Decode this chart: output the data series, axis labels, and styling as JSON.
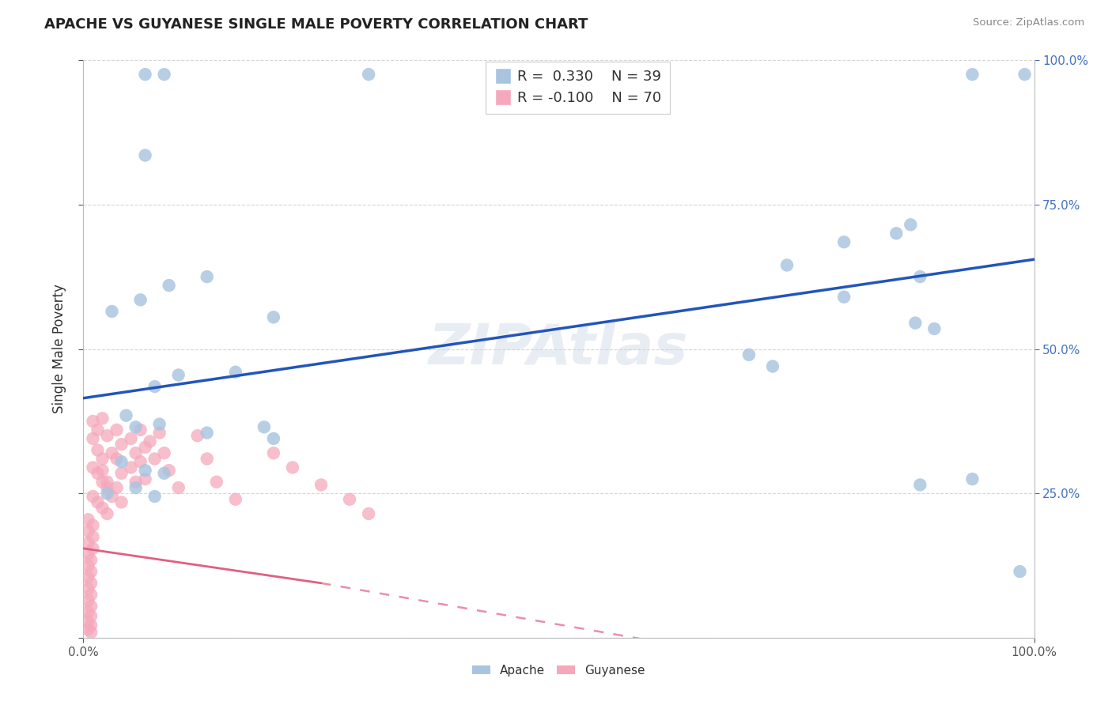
{
  "title": "APACHE VS GUYANESE SINGLE MALE POVERTY CORRELATION CHART",
  "source": "Source: ZipAtlas.com",
  "ylabel": "Single Male Poverty",
  "watermark": "ZIPAtlas",
  "legend_apache": "Apache",
  "legend_guyanese": "Guyanese",
  "apache_r": 0.33,
  "apache_n": 39,
  "guyanese_r": -0.1,
  "guyanese_n": 70,
  "xlim": [
    0.0,
    1.0
  ],
  "ylim": [
    0.0,
    1.0
  ],
  "apache_color": "#a8c4e0",
  "apache_line_color": "#2255bb",
  "guyanese_color": "#f5a8bc",
  "guyanese_line_color": "#e06080",
  "background_color": "#ffffff",
  "apache_scatter": [
    [
      0.065,
      0.975
    ],
    [
      0.085,
      0.975
    ],
    [
      0.3,
      0.975
    ],
    [
      0.935,
      0.975
    ],
    [
      0.99,
      0.975
    ],
    [
      0.065,
      0.835
    ],
    [
      0.03,
      0.565
    ],
    [
      0.06,
      0.585
    ],
    [
      0.09,
      0.61
    ],
    [
      0.13,
      0.625
    ],
    [
      0.2,
      0.555
    ],
    [
      0.1,
      0.455
    ],
    [
      0.16,
      0.46
    ],
    [
      0.075,
      0.435
    ],
    [
      0.045,
      0.385
    ],
    [
      0.055,
      0.365
    ],
    [
      0.08,
      0.37
    ],
    [
      0.13,
      0.355
    ],
    [
      0.19,
      0.365
    ],
    [
      0.2,
      0.345
    ],
    [
      0.04,
      0.305
    ],
    [
      0.065,
      0.29
    ],
    [
      0.085,
      0.285
    ],
    [
      0.025,
      0.25
    ],
    [
      0.055,
      0.26
    ],
    [
      0.075,
      0.245
    ],
    [
      0.74,
      0.645
    ],
    [
      0.8,
      0.685
    ],
    [
      0.8,
      0.59
    ],
    [
      0.855,
      0.7
    ],
    [
      0.87,
      0.715
    ],
    [
      0.875,
      0.545
    ],
    [
      0.88,
      0.625
    ],
    [
      0.895,
      0.535
    ],
    [
      0.7,
      0.49
    ],
    [
      0.725,
      0.47
    ],
    [
      0.88,
      0.265
    ],
    [
      0.935,
      0.275
    ],
    [
      0.985,
      0.115
    ]
  ],
  "guyanese_scatter": [
    [
      0.01,
      0.375
    ],
    [
      0.015,
      0.36
    ],
    [
      0.01,
      0.345
    ],
    [
      0.015,
      0.325
    ],
    [
      0.02,
      0.31
    ],
    [
      0.01,
      0.295
    ],
    [
      0.015,
      0.285
    ],
    [
      0.02,
      0.27
    ],
    [
      0.025,
      0.26
    ],
    [
      0.01,
      0.245
    ],
    [
      0.015,
      0.235
    ],
    [
      0.02,
      0.225
    ],
    [
      0.025,
      0.215
    ],
    [
      0.005,
      0.205
    ],
    [
      0.01,
      0.195
    ],
    [
      0.005,
      0.185
    ],
    [
      0.01,
      0.175
    ],
    [
      0.005,
      0.165
    ],
    [
      0.01,
      0.155
    ],
    [
      0.005,
      0.145
    ],
    [
      0.008,
      0.135
    ],
    [
      0.005,
      0.125
    ],
    [
      0.008,
      0.115
    ],
    [
      0.005,
      0.105
    ],
    [
      0.008,
      0.095
    ],
    [
      0.005,
      0.085
    ],
    [
      0.008,
      0.075
    ],
    [
      0.005,
      0.065
    ],
    [
      0.008,
      0.055
    ],
    [
      0.005,
      0.045
    ],
    [
      0.008,
      0.038
    ],
    [
      0.005,
      0.028
    ],
    [
      0.008,
      0.022
    ],
    [
      0.005,
      0.015
    ],
    [
      0.008,
      0.01
    ],
    [
      0.02,
      0.38
    ],
    [
      0.025,
      0.35
    ],
    [
      0.03,
      0.32
    ],
    [
      0.02,
      0.29
    ],
    [
      0.025,
      0.27
    ],
    [
      0.03,
      0.245
    ],
    [
      0.035,
      0.36
    ],
    [
      0.04,
      0.335
    ],
    [
      0.035,
      0.31
    ],
    [
      0.04,
      0.285
    ],
    [
      0.035,
      0.26
    ],
    [
      0.04,
      0.235
    ],
    [
      0.05,
      0.345
    ],
    [
      0.055,
      0.32
    ],
    [
      0.05,
      0.295
    ],
    [
      0.055,
      0.27
    ],
    [
      0.06,
      0.36
    ],
    [
      0.065,
      0.33
    ],
    [
      0.06,
      0.305
    ],
    [
      0.065,
      0.275
    ],
    [
      0.07,
      0.34
    ],
    [
      0.075,
      0.31
    ],
    [
      0.08,
      0.355
    ],
    [
      0.085,
      0.32
    ],
    [
      0.09,
      0.29
    ],
    [
      0.1,
      0.26
    ],
    [
      0.12,
      0.35
    ],
    [
      0.13,
      0.31
    ],
    [
      0.14,
      0.27
    ],
    [
      0.16,
      0.24
    ],
    [
      0.2,
      0.32
    ],
    [
      0.22,
      0.295
    ],
    [
      0.25,
      0.265
    ],
    [
      0.28,
      0.24
    ],
    [
      0.3,
      0.215
    ]
  ],
  "apache_line": [
    0.0,
    0.415,
    1.0,
    0.655
  ],
  "guyanese_line_solid": [
    0.0,
    0.155,
    0.25,
    0.095
  ],
  "guyanese_line_dashed": [
    0.25,
    0.095,
    1.0,
    -0.12
  ]
}
